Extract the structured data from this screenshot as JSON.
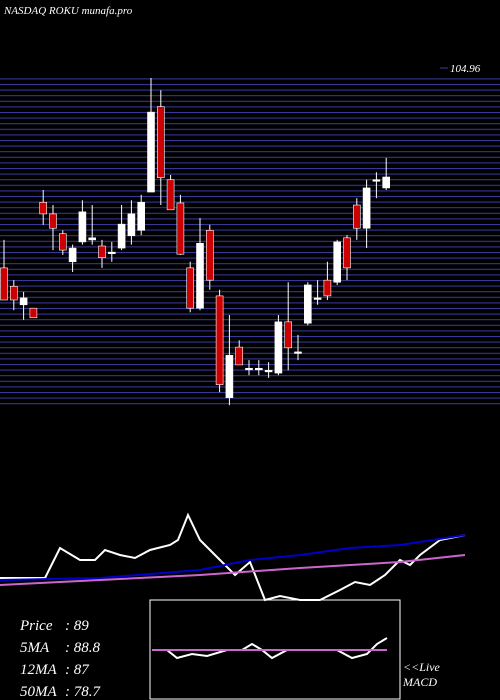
{
  "chart_data": {
    "type": "candlestick",
    "title": "NASDAQ ROKU munafa.pro",
    "ylim": [
      55,
      105
    ],
    "yticks": [
      104.96
    ],
    "up_color": "#ffffff",
    "down_color": "#cc0000",
    "candles": [
      [
        75.7,
        79.8,
        71.0,
        71.0
      ],
      [
        73.0,
        73.9,
        69.5,
        71.0
      ],
      [
        70.3,
        72.2,
        68.1,
        71.3
      ],
      [
        69.8,
        69.8,
        68.4,
        68.4
      ],
      [
        85.3,
        87.1,
        82.0,
        83.6
      ],
      [
        83.6,
        84.9,
        78.3,
        81.5
      ],
      [
        80.7,
        81.2,
        77.6,
        78.3
      ],
      [
        76.6,
        79.1,
        75.1,
        78.6
      ],
      [
        79.5,
        85.6,
        79.1,
        83.9
      ],
      [
        79.8,
        84.9,
        79.1,
        80.1
      ],
      [
        78.9,
        79.8,
        75.7,
        77.2
      ],
      [
        78.0,
        79.5,
        76.6,
        78.0
      ],
      [
        78.6,
        84.9,
        78.3,
        82.1
      ],
      [
        80.4,
        85.6,
        79.1,
        83.6
      ],
      [
        81.2,
        86.4,
        80.5,
        85.3
      ],
      [
        86.8,
        103.5,
        86.8,
        98.5
      ],
      [
        99.3,
        101.7,
        84.9,
        88.9
      ],
      [
        88.6,
        89.3,
        84.2,
        84.2
      ],
      [
        85.2,
        86.4,
        77.6,
        77.7
      ],
      [
        75.7,
        76.6,
        69.2,
        69.8
      ],
      [
        69.8,
        83.0,
        69.5,
        79.3
      ],
      [
        81.2,
        82.0,
        72.5,
        73.9
      ],
      [
        71.6,
        72.5,
        57.5,
        58.6
      ],
      [
        56.7,
        68.8,
        55.6,
        62.9
      ],
      [
        64.1,
        65.1,
        61.5,
        61.5
      ],
      [
        61.0,
        62.2,
        60.0,
        61.0
      ],
      [
        61.0,
        62.2,
        60.0,
        61.0
      ],
      [
        60.7,
        61.9,
        59.6,
        60.7
      ],
      [
        60.3,
        68.8,
        60.0,
        67.8
      ],
      [
        67.8,
        73.6,
        60.7,
        64.0
      ],
      [
        63.4,
        65.9,
        62.2,
        63.4
      ],
      [
        67.6,
        73.6,
        67.3,
        73.2
      ],
      [
        71.3,
        73.9,
        70.3,
        71.3
      ],
      [
        73.9,
        76.6,
        71.0,
        71.6
      ],
      [
        73.6,
        79.8,
        73.2,
        79.5
      ],
      [
        80.1,
        80.5,
        73.9,
        75.7
      ],
      [
        84.9,
        85.9,
        79.8,
        81.5
      ],
      [
        81.5,
        88.6,
        78.6,
        87.4
      ],
      [
        88.6,
        89.7,
        85.9,
        88.6
      ],
      [
        87.4,
        91.8,
        87.1,
        89.0
      ]
    ],
    "ma_panel": {
      "ylim": [
        0,
        100
      ],
      "xlim": [
        0,
        465
      ],
      "series": [
        {
          "color": "#ffffff",
          "x": [
            0,
            20,
            45,
            60,
            80,
            95,
            105,
            120,
            135,
            150,
            170,
            178,
            188,
            200,
            220,
            235,
            250,
            265,
            280,
            300,
            320,
            340,
            355,
            370,
            385,
            400,
            410,
            420,
            440,
            465
          ],
          "values": [
            32,
            32,
            32,
            62,
            50,
            50,
            60,
            55,
            52,
            60,
            65,
            70,
            95,
            70,
            50,
            35,
            48,
            10,
            14,
            10,
            10,
            20,
            28,
            25,
            35,
            50,
            45,
            55,
            70,
            75
          ]
        },
        {
          "color": "#0000cc",
          "x": [
            0,
            100,
            200,
            250,
            300,
            350,
            400,
            465
          ],
          "values": [
            30,
            32,
            40,
            50,
            55,
            62,
            65,
            75
          ]
        },
        {
          "color": "#cc66cc",
          "x": [
            0,
            100,
            200,
            300,
            400,
            465
          ],
          "values": [
            25,
            30,
            35,
            42,
            48,
            55
          ]
        }
      ]
    },
    "macd_panel": {
      "ylim": [
        -20,
        20
      ],
      "xlim": [
        0,
        235
      ],
      "series": [
        {
          "color": "#ffffff",
          "x": [
            0,
            15,
            25,
            40,
            55,
            75,
            90,
            100,
            110,
            120,
            135,
            150,
            170,
            185,
            200,
            215,
            225,
            235
          ],
          "values": [
            0,
            0,
            -4,
            -2,
            -3,
            0,
            0,
            3,
            0,
            -4,
            0,
            0,
            0,
            0,
            -4,
            -2,
            3,
            6
          ]
        },
        {
          "color": "#cc66cc",
          "x": [
            0,
            235
          ],
          "values": [
            0,
            0
          ]
        }
      ]
    },
    "info": [
      {
        "label": "Price",
        "text": ": 89"
      },
      {
        "label": "5MA",
        "text": ": 88.8"
      },
      {
        "label": "12MA",
        "text": ": 87"
      },
      {
        "label": "50MA",
        "text": ": 78.7"
      }
    ],
    "macd_label": [
      "<<Live",
      "MACD"
    ]
  }
}
